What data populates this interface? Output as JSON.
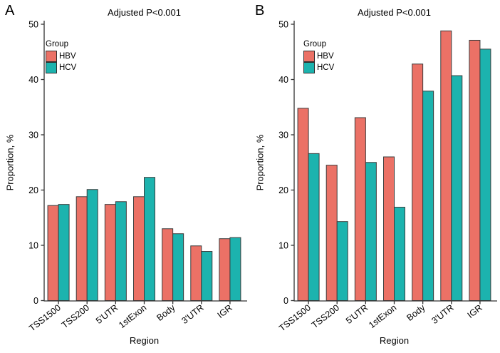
{
  "styles": {
    "hbv_color": "#EB7166",
    "hcv_color": "#1CB3AE",
    "bar_stroke": "#3C3C3C",
    "axis_color": "#333333",
    "text_color": "#111111"
  },
  "chart_data": [
    {
      "panel": "A",
      "type": "bar",
      "title": "Adjusted P<0.001",
      "xlabel": "Region",
      "ylabel": "Proportion, %",
      "legend_title": "Group",
      "legend_position": "top-left-inside",
      "grid": false,
      "ylim": [
        0,
        50
      ],
      "yticks": [
        0,
        10,
        20,
        30,
        40,
        50
      ],
      "categories": [
        "TSS1500",
        "TSS200",
        "5'UTR",
        "1stExon",
        "Body",
        "3'UTR",
        "IGR"
      ],
      "series": [
        {
          "name": "HBV",
          "color": "#EB7166",
          "values": [
            17.2,
            18.8,
            17.4,
            18.8,
            13.0,
            9.9,
            11.2
          ]
        },
        {
          "name": "HCV",
          "color": "#1CB3AE",
          "values": [
            17.4,
            20.1,
            17.9,
            22.3,
            12.1,
            8.9,
            11.4
          ]
        }
      ]
    },
    {
      "panel": "B",
      "type": "bar",
      "title": "Adjusted P<0.001",
      "xlabel": "Region",
      "ylabel": "Proportion, %",
      "legend_title": "Group",
      "legend_position": "top-left-inside",
      "grid": false,
      "ylim": [
        0,
        50
      ],
      "yticks": [
        0,
        10,
        20,
        30,
        40,
        50
      ],
      "categories": [
        "TSS1500",
        "TSS200",
        "5'UTR",
        "1stExon",
        "Body",
        "3'UTR",
        "IGR"
      ],
      "series": [
        {
          "name": "HBV",
          "color": "#EB7166",
          "values": [
            34.8,
            24.5,
            33.1,
            26.0,
            42.8,
            48.8,
            47.1
          ]
        },
        {
          "name": "HCV",
          "color": "#1CB3AE",
          "values": [
            26.6,
            14.3,
            25.0,
            16.9,
            37.9,
            40.7,
            45.5
          ]
        }
      ]
    }
  ]
}
